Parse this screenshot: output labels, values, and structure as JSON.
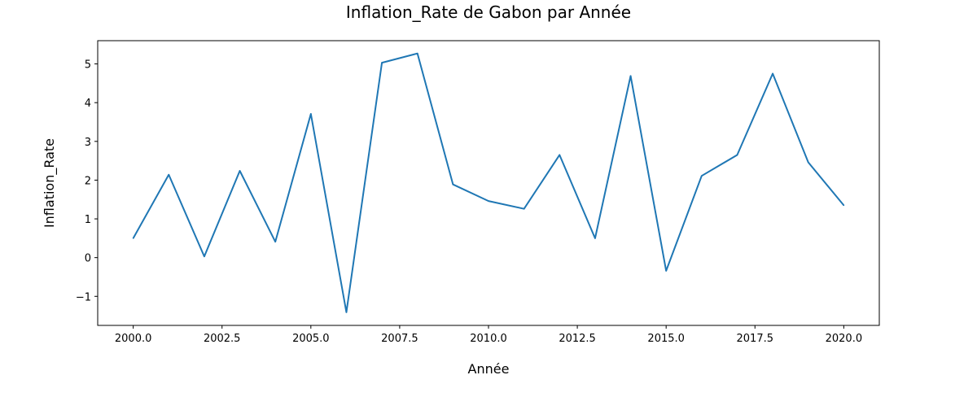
{
  "chart_data": {
    "type": "line",
    "title": "Inflation_Rate de Gabon par Année",
    "xlabel": "Année",
    "ylabel": "Inflation_Rate",
    "xlim": [
      1999.0,
      2021.0
    ],
    "ylim": [
      -1.75,
      5.6
    ],
    "x_ticks": [
      2000.0,
      2002.5,
      2005.0,
      2007.5,
      2010.0,
      2012.5,
      2015.0,
      2017.5,
      2020.0
    ],
    "x_tick_labels": [
      "2000.0",
      "2002.5",
      "2005.0",
      "2007.5",
      "2010.0",
      "2012.5",
      "2015.0",
      "2017.5",
      "2020.0"
    ],
    "y_ticks": [
      -1,
      0,
      1,
      2,
      3,
      4,
      5
    ],
    "y_tick_labels": [
      "−1",
      "0",
      "1",
      "2",
      "3",
      "4",
      "5"
    ],
    "grid": false,
    "series": [
      {
        "color": "#1f77b4",
        "x": [
          2000,
          2001,
          2002,
          2003,
          2004,
          2005,
          2006,
          2007,
          2008,
          2009,
          2010,
          2011,
          2012,
          2013,
          2014,
          2015,
          2016,
          2017,
          2018,
          2019,
          2020
        ],
        "y": [
          0.5,
          2.14,
          0.03,
          2.24,
          0.41,
          3.71,
          -1.41,
          5.03,
          5.27,
          1.89,
          1.46,
          1.26,
          2.65,
          0.5,
          4.69,
          -0.34,
          2.11,
          2.65,
          4.75,
          2.46,
          1.35
        ]
      }
    ]
  }
}
